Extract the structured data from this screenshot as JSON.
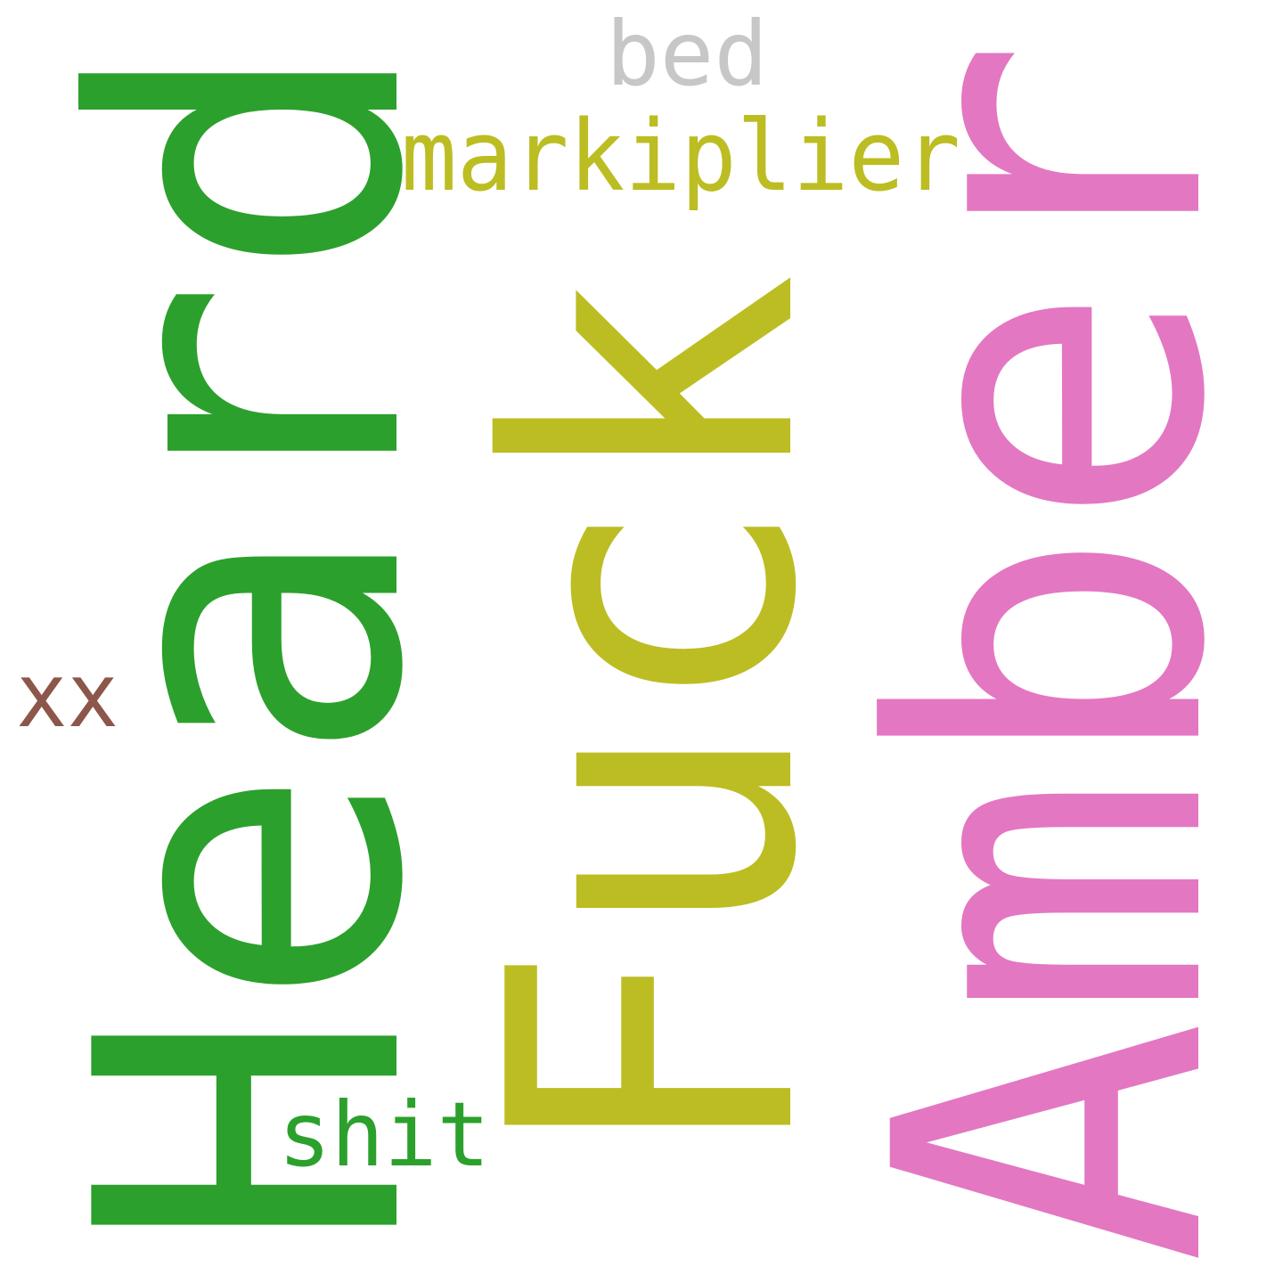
{
  "words": [
    {
      "text": "Heard",
      "color": "#2ca02c"
    },
    {
      "text": "Amber",
      "color": "#e377c2"
    },
    {
      "text": "Fuck",
      "color": "#bcbd22"
    },
    {
      "text": "markiplier",
      "color": "#bcbd22"
    },
    {
      "text": "bed",
      "color": "#c7c7c7"
    },
    {
      "text": "shit",
      "color": "#2ca02c"
    },
    {
      "text": "xx",
      "color": "#8c564b"
    }
  ]
}
